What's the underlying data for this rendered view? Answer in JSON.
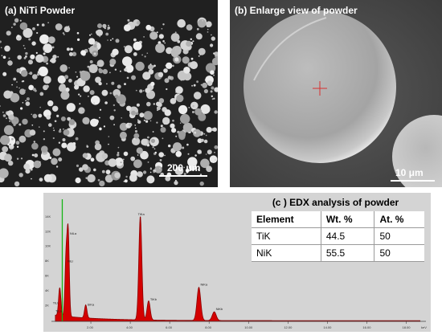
{
  "panel_a": {
    "label": "(a) NiTi Powder",
    "scale": "200 μm"
  },
  "panel_b": {
    "label": "(b) Enlarge view of powder",
    "scale": "10 μm"
  },
  "panel_c": {
    "title": "(c ) EDX analysis of powder",
    "table": {
      "headers": [
        "Element",
        "Wt. %",
        "At. %"
      ],
      "rows": [
        [
          "TiK",
          "44.5",
          "50"
        ],
        [
          "NiK",
          "55.5",
          "50"
        ]
      ]
    }
  },
  "chart_data": {
    "type": "line",
    "title": "(c ) EDX analysis of powder",
    "xlabel": "keV",
    "x_ticks": [
      "2.00",
      "4.00",
      "6.00",
      "8.00",
      "10.00",
      "12.00",
      "14.00",
      "16.00",
      "18.00"
    ],
    "y_ticks": [
      "2K",
      "4K",
      "6K",
      "8K",
      "10K",
      "12K",
      "14K"
    ],
    "xlim": [
      0,
      19
    ],
    "ylim": [
      0,
      14
    ],
    "peaks": [
      {
        "label": "TiLa",
        "x": 0.45,
        "y": 1.6
      },
      {
        "label": "TiLl",
        "x": 0.4,
        "y": 2.0
      },
      {
        "label": "NiLa",
        "x": 0.85,
        "y": 9.6
      },
      {
        "label": "NiLl",
        "x": 0.74,
        "y": 6.6
      },
      {
        "label": "TiKa",
        "x": 4.51,
        "y": 11.9
      },
      {
        "label": "TiKb",
        "x": 4.93,
        "y": 2.2
      },
      {
        "label": "NiKa",
        "x": 7.48,
        "y": 3.8
      },
      {
        "label": "NiKb",
        "x": 8.26,
        "y": 1.0
      },
      {
        "label": "SiKa",
        "x": 1.74,
        "y": 1.5
      }
    ],
    "colors": {
      "spectrum_fill": "#d40000",
      "spectrum_line": "#8a0000",
      "marker_line": "#16b416",
      "background": "#d4d4d4"
    }
  }
}
